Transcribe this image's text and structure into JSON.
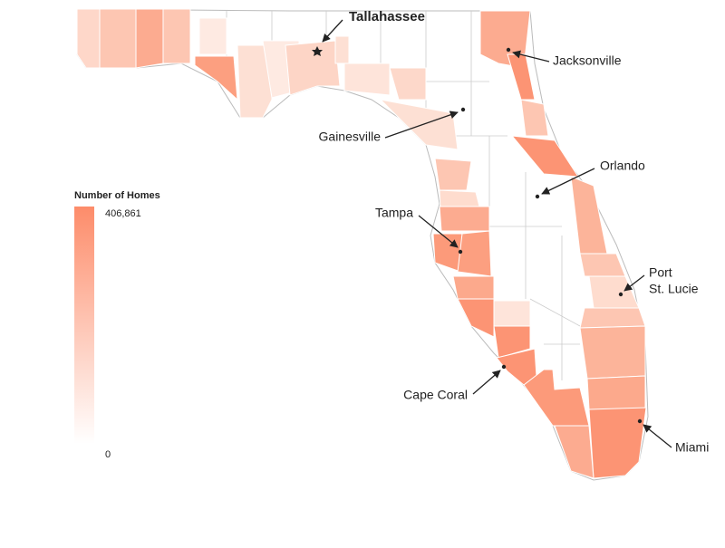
{
  "legend": {
    "title": "Number of Homes",
    "ticks": [
      {
        "value": 406861,
        "label": "406,861"
      },
      0
    ]
  },
  "cities": {
    "capital": "Tallahassee",
    "jacksonville": "Jacksonville",
    "gainesville": "Gainesville",
    "orlando": "Orlando",
    "tampa": "Tampa",
    "port_st_lucie": [
      "Port",
      "St. Lucie"
    ],
    "cape_coral": "Cape Coral",
    "miami": "Miami"
  }
}
